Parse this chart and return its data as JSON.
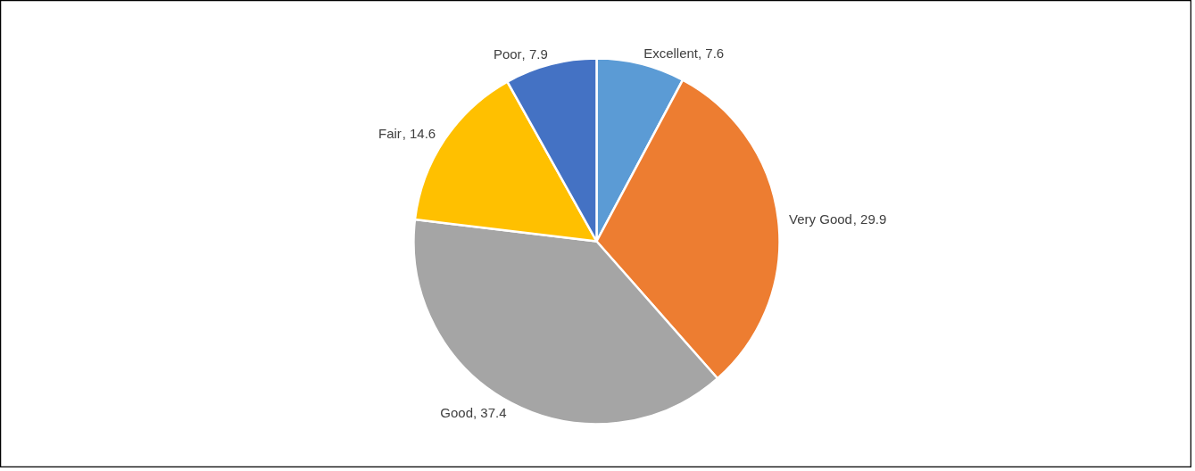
{
  "chart_data": {
    "type": "pie",
    "categories": [
      "Excellent",
      "Very Good",
      "Good",
      "Fair",
      "Poor"
    ],
    "values": [
      7.6,
      29.9,
      37.4,
      14.6,
      7.9
    ],
    "colors": [
      "#5b9bd5",
      "#ed7d31",
      "#a5a5a5",
      "#ffc000",
      "#4472c4"
    ],
    "value_labels": [
      ", 7.6",
      ", 29.9",
      ", 37.4",
      ", 14.6",
      ", 7.9"
    ],
    "legend": false
  }
}
